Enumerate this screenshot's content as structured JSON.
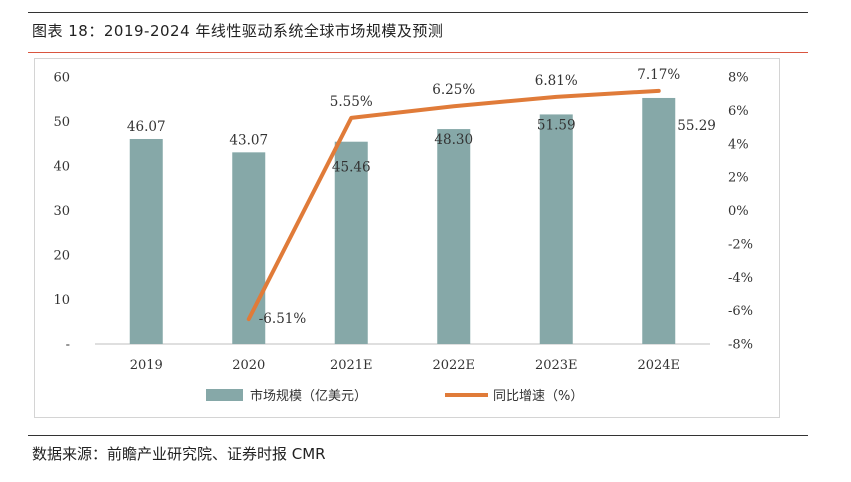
{
  "title": "图表 18：2019-2024 年线性驱动系统全球市场规模及预测",
  "source": "数据来源：前瞻产业研究院、证券时报 CMR",
  "chart_data": {
    "type": "bar",
    "categories": [
      "2019",
      "2020",
      "2021E",
      "2022E",
      "2023E",
      "2024E"
    ],
    "series": [
      {
        "name": "市场规模（亿美元）",
        "type": "bar",
        "axis": "left",
        "color": "#86a8a8",
        "values": [
          46.07,
          43.07,
          45.46,
          48.3,
          51.59,
          55.29
        ],
        "labels": [
          "46.07",
          "43.07",
          "45.46",
          "48.30",
          "51.59",
          "55.29"
        ]
      },
      {
        "name": "同比增速（%）",
        "type": "line",
        "axis": "right",
        "color": "#e07b39",
        "values": [
          null,
          -6.51,
          5.55,
          6.25,
          6.81,
          7.17
        ],
        "labels": [
          "",
          "-6.51%",
          "5.55%",
          "6.25%",
          "6.81%",
          "7.17%"
        ]
      }
    ],
    "y_left": {
      "ylim": [
        0,
        60
      ],
      "ticks": [
        0,
        10,
        20,
        30,
        40,
        50,
        60
      ],
      "tick_labels": [
        "-",
        "10",
        "20",
        "30",
        "40",
        "50",
        "60"
      ]
    },
    "y_right": {
      "ylim": [
        -8,
        8
      ],
      "ticks": [
        -8,
        -6,
        -4,
        -2,
        0,
        2,
        4,
        6,
        8
      ],
      "tick_labels": [
        "-8%",
        "-6%",
        "-4%",
        "-2%",
        "0%",
        "2%",
        "4%",
        "6%",
        "8%"
      ]
    },
    "legend_position": "bottom",
    "grid": false
  }
}
